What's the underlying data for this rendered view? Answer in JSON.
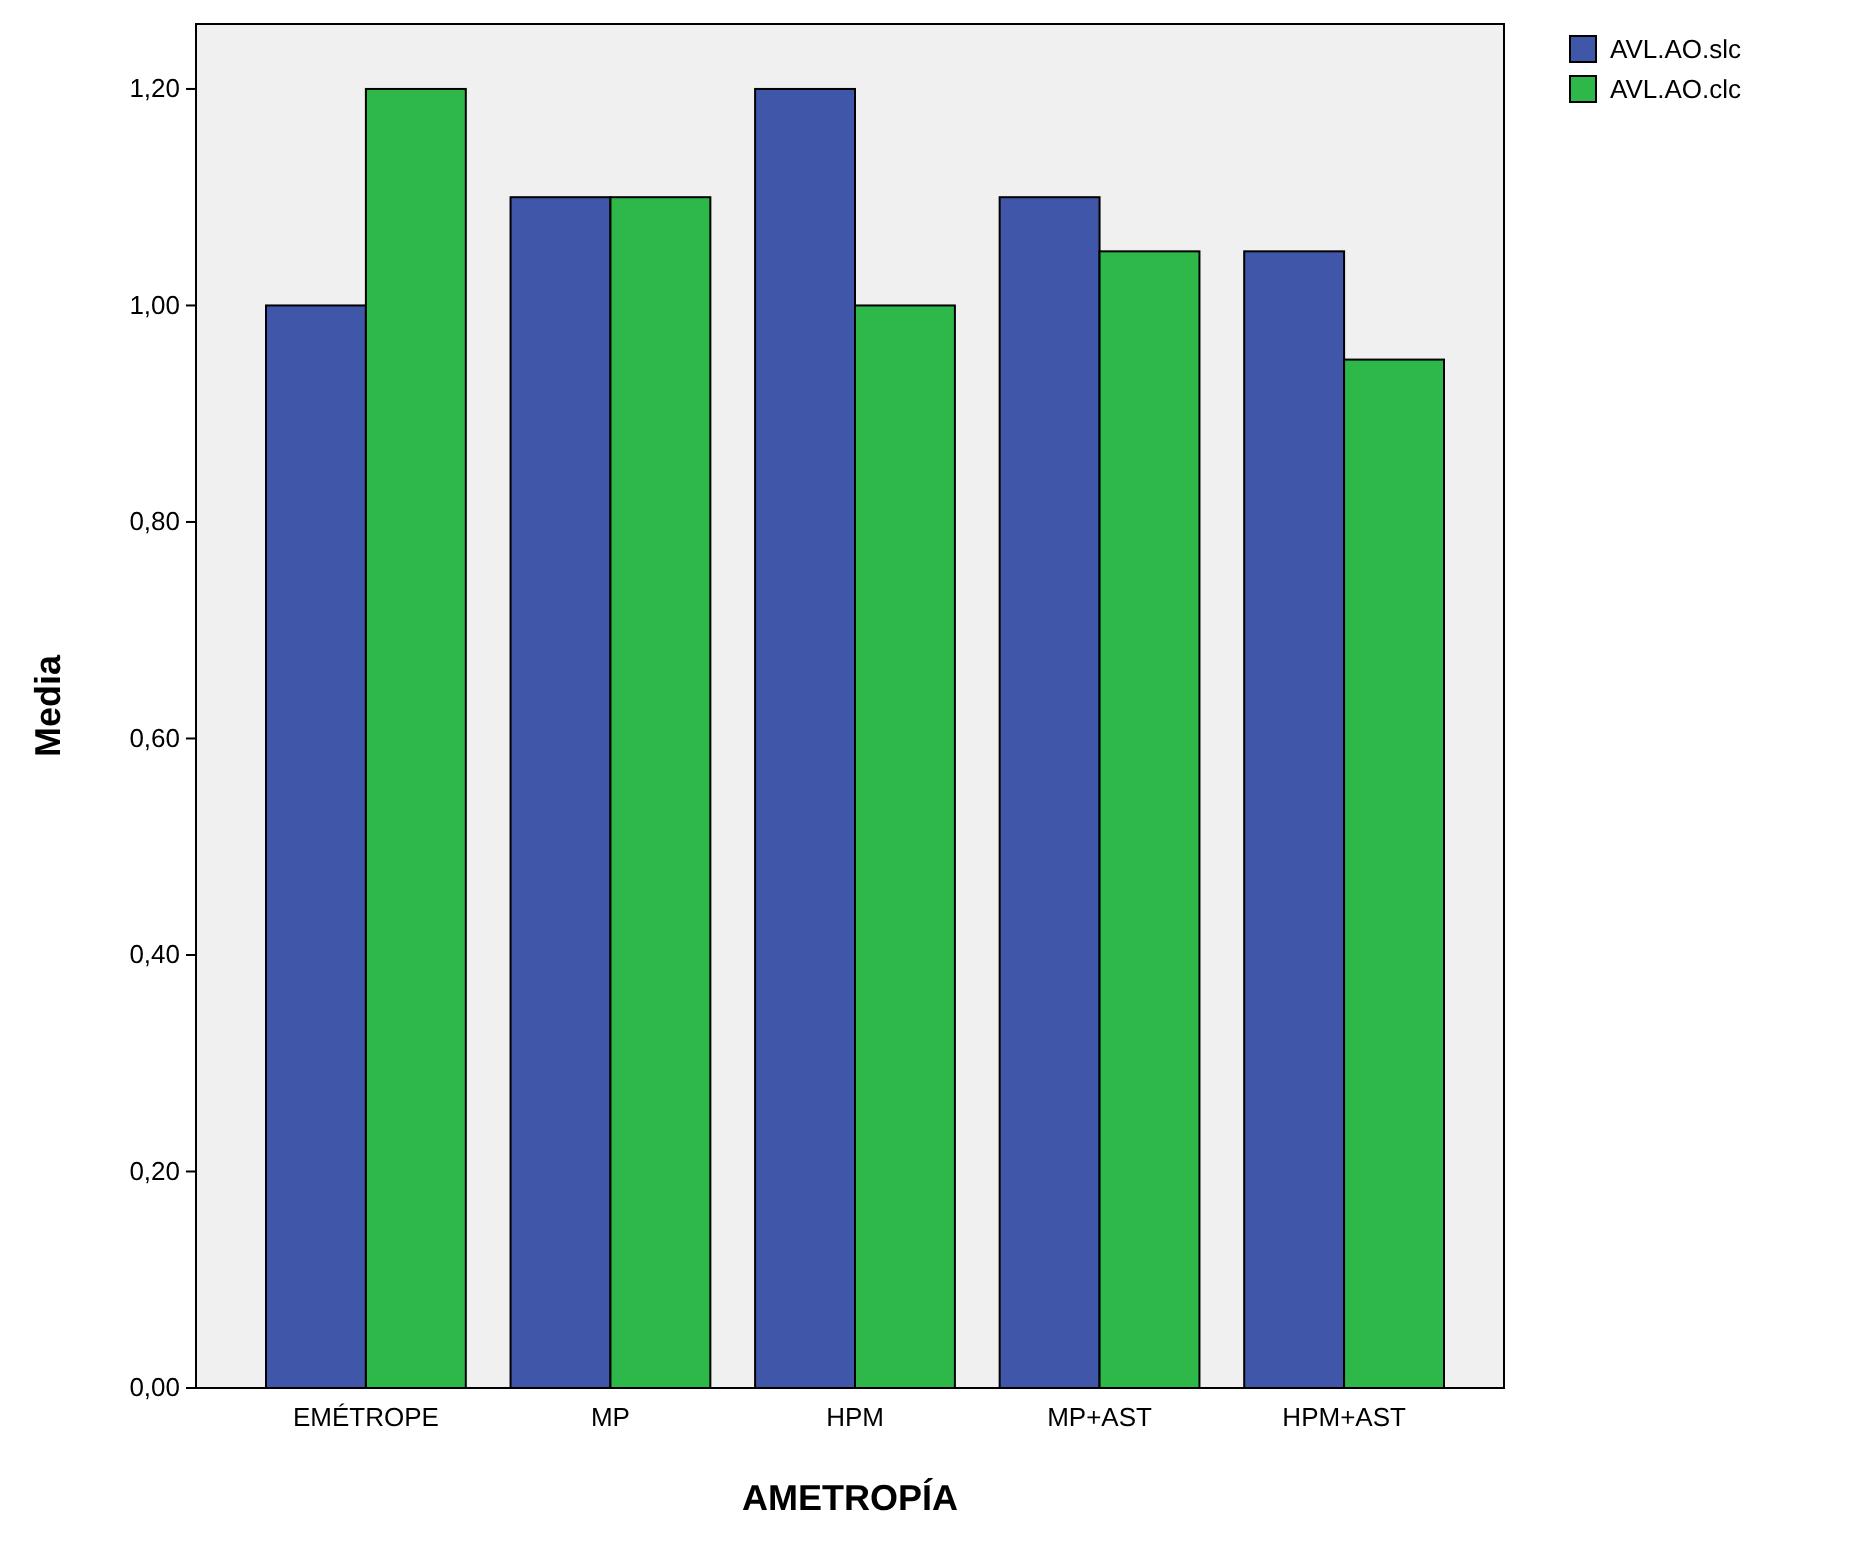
{
  "chart_data": {
    "type": "bar",
    "xlabel": "AMETROPÍA",
    "ylabel": "Media",
    "categories": [
      "EMÉTROPE",
      "MP",
      "HPM",
      "MP+AST",
      "HPM+AST"
    ],
    "series": [
      {
        "name": "AVL.AO.slc",
        "color": "#3f56a9",
        "values": [
          1.0,
          1.1,
          1.2,
          1.1,
          1.05
        ]
      },
      {
        "name": "AVL.AO.clc",
        "color": "#2fb84a",
        "values": [
          1.2,
          1.1,
          1.0,
          1.05,
          0.95
        ]
      }
    ],
    "ylim": [
      0,
      1.26
    ],
    "yticks": [
      {
        "value": 0,
        "label": "0,00"
      },
      {
        "value": 0.2,
        "label": "0,20"
      },
      {
        "value": 0.4,
        "label": "0,40"
      },
      {
        "value": 0.6,
        "label": "0,60"
      },
      {
        "value": 0.8,
        "label": "0,80"
      },
      {
        "value": 1.0,
        "label": "1,00"
      },
      {
        "value": 1.2,
        "label": "1,20"
      }
    ],
    "grid": false,
    "legend": "top right"
  }
}
